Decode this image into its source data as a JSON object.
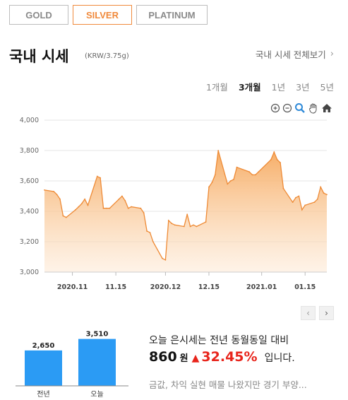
{
  "tabs": [
    {
      "label": "GOLD",
      "active": false
    },
    {
      "label": "SILVER",
      "active": true
    },
    {
      "label": "PLATINUM",
      "active": false
    }
  ],
  "header": {
    "title": "국내 시세",
    "unit": "(KRW/3.75g)",
    "full_link": "국내 시세 전체보기"
  },
  "periods": [
    {
      "label": "1개월",
      "active": false
    },
    {
      "label": "3개월",
      "active": true
    },
    {
      "label": "1년",
      "active": false
    },
    {
      "label": "3년",
      "active": false
    },
    {
      "label": "5년",
      "active": false
    }
  ],
  "tools": [
    "zoom-in-icon",
    "zoom-out-icon",
    "magnifier-icon",
    "hand-icon",
    "home-icon"
  ],
  "chart_data": {
    "type": "area",
    "title": "",
    "xlabel": "",
    "ylabel": "",
    "ylim": [
      3000,
      4000
    ],
    "yticks": [
      "3,000",
      "3,200",
      "3,400",
      "3,600",
      "3,800",
      "4,000"
    ],
    "xticks": [
      "2020.11",
      "11.15",
      "2020.12",
      "12.15",
      "2021.01",
      "01.15"
    ],
    "grid": true,
    "color": "#f6b97c",
    "series": [
      {
        "x": [
          "2020-10-23",
          "2020-10-26",
          "2020-10-27",
          "2020-10-28",
          "2020-10-29",
          "2020-10-30",
          "2020-11-02",
          "2020-11-03",
          "2020-11-04",
          "2020-11-05",
          "2020-11-06",
          "2020-11-09",
          "2020-11-10",
          "2020-11-11",
          "2020-11-12",
          "2020-11-13",
          "2020-11-16",
          "2020-11-17",
          "2020-11-18",
          "2020-11-19",
          "2020-11-20",
          "2020-11-23",
          "2020-11-24",
          "2020-11-25",
          "2020-11-26",
          "2020-11-27",
          "2020-11-30",
          "2020-12-01",
          "2020-12-02",
          "2020-12-03",
          "2020-12-04",
          "2020-12-07",
          "2020-12-08",
          "2020-12-09",
          "2020-12-10",
          "2020-12-11",
          "2020-12-14",
          "2020-12-15",
          "2020-12-16",
          "2020-12-17",
          "2020-12-18",
          "2020-12-21",
          "2020-12-22",
          "2020-12-23",
          "2020-12-24",
          "2020-12-28",
          "2020-12-29",
          "2020-12-30",
          "2020-12-31",
          "2021-01-04",
          "2021-01-05",
          "2021-01-06",
          "2021-01-07",
          "2021-01-08",
          "2021-01-11",
          "2021-01-12",
          "2021-01-13",
          "2021-01-14",
          "2021-01-15",
          "2021-01-18",
          "2021-01-19",
          "2021-01-20",
          "2021-01-21",
          "2021-01-22"
        ],
        "y": [
          3540,
          3530,
          3510,
          3480,
          3370,
          3360,
          3410,
          3430,
          3450,
          3480,
          3440,
          3630,
          3620,
          3420,
          3420,
          3420,
          3480,
          3500,
          3470,
          3420,
          3430,
          3420,
          3390,
          3270,
          3260,
          3200,
          3090,
          3080,
          3340,
          3320,
          3310,
          3300,
          3380,
          3300,
          3310,
          3300,
          3330,
          3560,
          3590,
          3640,
          3800,
          3580,
          3600,
          3610,
          3690,
          3660,
          3640,
          3640,
          3660,
          3740,
          3790,
          3740,
          3720,
          3550,
          3460,
          3490,
          3500,
          3410,
          3440,
          3460,
          3480,
          3560,
          3520,
          3510
        ]
      }
    ]
  },
  "pager": {
    "prev": "‹",
    "next": "›"
  },
  "minibar": {
    "type": "bar",
    "categories": [
      "전년",
      "오늘"
    ],
    "values": [
      2650,
      3510
    ],
    "value_labels": [
      "2,650",
      "3,510"
    ],
    "color": "#2b9bf4"
  },
  "summary": {
    "line1": "오늘 은시세는 전년 동월동일 대비",
    "diff": "860",
    "won": "원",
    "arrow": "▲",
    "pct": "32.45%",
    "suffix": "입니다."
  },
  "news": "금값, 차익 실현 매물 나왔지만 경기 부양..."
}
